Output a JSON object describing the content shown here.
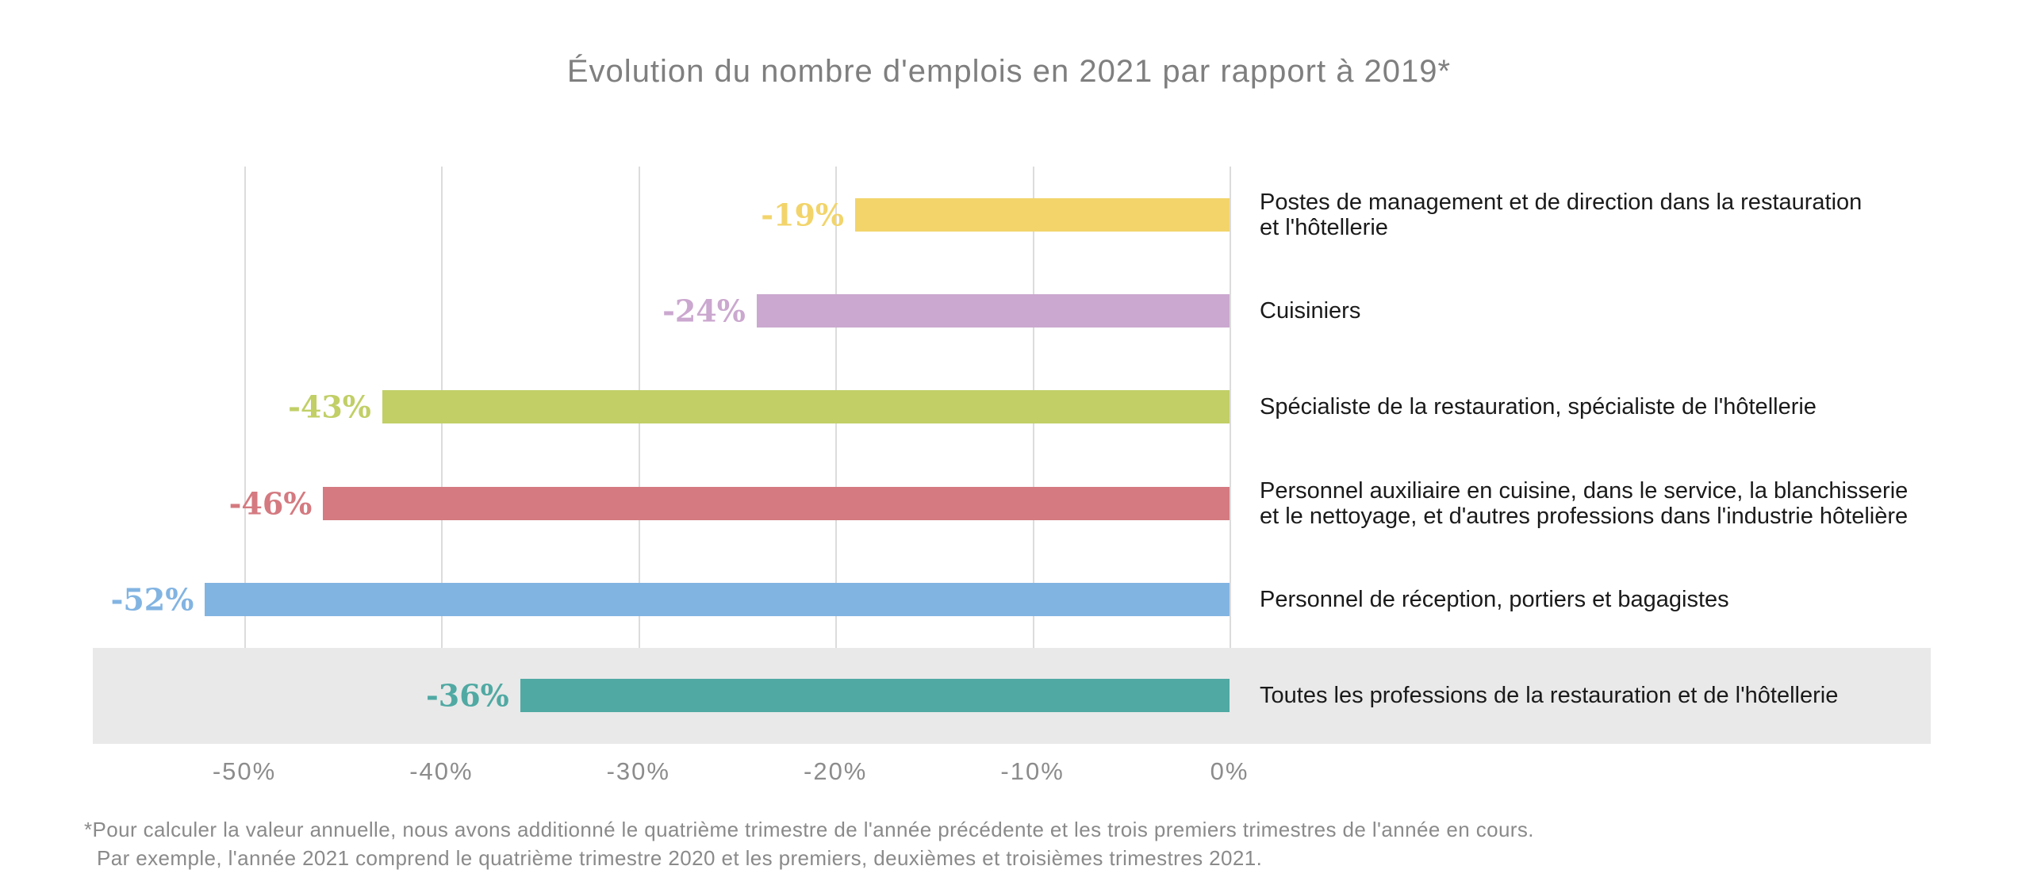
{
  "title": "Évolution du nombre d'emplois en 2021 par rapport à 2019*",
  "footnote": {
    "line1": "*Pour calculer la valeur annuelle, nous avons additionné le quatrième trimestre de l'année précédente et les trois premiers trimestres de l'année en cours.",
    "line2": "Par exemple, l'année 2021 comprend le quatrième trimestre 2020 et les premiers, deuxièmes et troisièmes trimestres 2021."
  },
  "chart_data": {
    "type": "bar",
    "orientation": "horizontal",
    "title": "Évolution du nombre d'emplois en 2021 par rapport à 2019*",
    "xlabel": "",
    "ylabel": "",
    "xlim": [
      -55,
      0
    ],
    "grid": true,
    "x_ticks": [
      "-50%",
      "-40%",
      "-30%",
      "-20%",
      "-10%",
      "0%"
    ],
    "x_tick_values": [
      -50,
      -40,
      -30,
      -20,
      -10,
      0
    ],
    "highlight_band_color": "#e9e9e9",
    "gridline_color": "#dcdcdc",
    "rows": [
      {
        "label": "Postes de management et de direction dans la restauration\net l'hôtellerie",
        "value": -19,
        "value_label": "-19%",
        "color": "#F2D46B",
        "highlighted": false
      },
      {
        "label": "Cuisiniers",
        "value": -24,
        "value_label": "-24%",
        "color": "#CBA8CF",
        "highlighted": false
      },
      {
        "label": "Spécialiste de la restauration, spécialiste de l'hôtellerie",
        "value": -43,
        "value_label": "-43%",
        "color": "#C1CF66",
        "highlighted": false
      },
      {
        "label": "Personnel auxiliaire en cuisine, dans le service, la blanchisserie\net le nettoyage, et d'autres professions dans l'industrie hôtelière",
        "value": -46,
        "value_label": "-46%",
        "color": "#D47A80",
        "highlighted": false
      },
      {
        "label": "Personnel de réception, portiers et bagagistes",
        "value": -52,
        "value_label": "-52%",
        "color": "#82B4E2",
        "highlighted": false
      },
      {
        "label": "Toutes les professions de la restauration et de l'hôtellerie",
        "value": -36,
        "value_label": "-36%",
        "color": "#50A9A3",
        "highlighted": true
      }
    ]
  }
}
